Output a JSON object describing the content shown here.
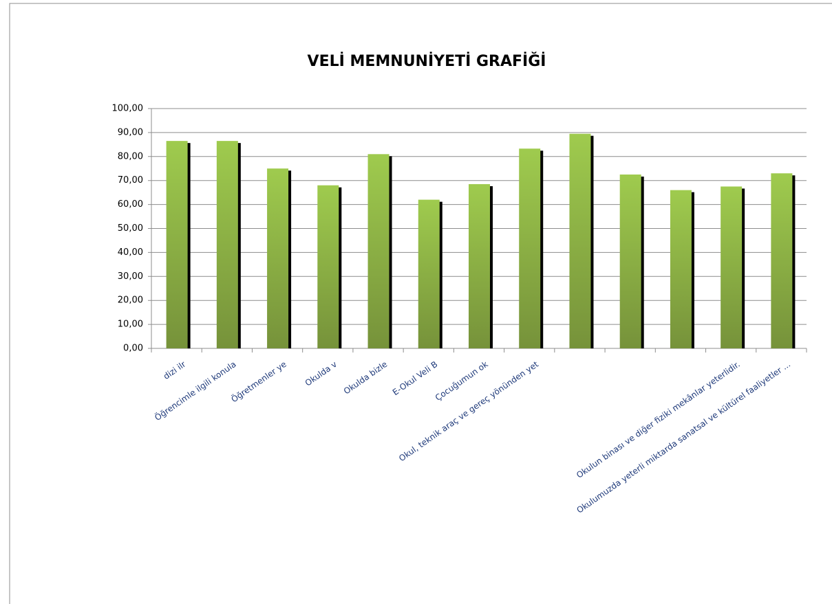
{
  "chart_data": {
    "type": "bar",
    "title": "VELİ MEMNUNİYETİ GRAFİĞİ",
    "categories": [
      "dizi ilr",
      "Öğrencimle ilgili konula",
      "Öğretmenler ye",
      "Okulda v",
      "Okulda bizle",
      "E-Okul Veli B",
      "Çocuğumun ok",
      "Okul, teknik araç ve gereç yönünden yet",
      null,
      null,
      null,
      "Okulun binası ve diğer fiziki mekânlar yeterlidir.",
      "Okulumuzda yeterli miktarda sanatsal ve kültürel faaliyetler ..."
    ],
    "values": [
      86.5,
      86.5,
      75,
      68,
      81,
      62,
      68.5,
      83.3,
      89.5,
      72.5,
      66,
      67.5,
      73
    ],
    "color": "#8cb443",
    "ylim": [
      0,
      100
    ],
    "yticks": [
      {
        "value": 0,
        "label": "0,00"
      },
      {
        "value": 10,
        "label": "10,00"
      },
      {
        "value": 20,
        "label": "20,00"
      },
      {
        "value": 30,
        "label": "30,00"
      },
      {
        "value": 40,
        "label": "40,00"
      },
      {
        "value": 50,
        "label": "50,00"
      },
      {
        "value": 60,
        "label": "60,00"
      },
      {
        "value": 70,
        "label": "70,00"
      },
      {
        "value": 80,
        "label": "80,00"
      },
      {
        "value": 90,
        "label": "90,00"
      },
      {
        "value": 100,
        "label": "100,00"
      }
    ],
    "grid": true
  }
}
